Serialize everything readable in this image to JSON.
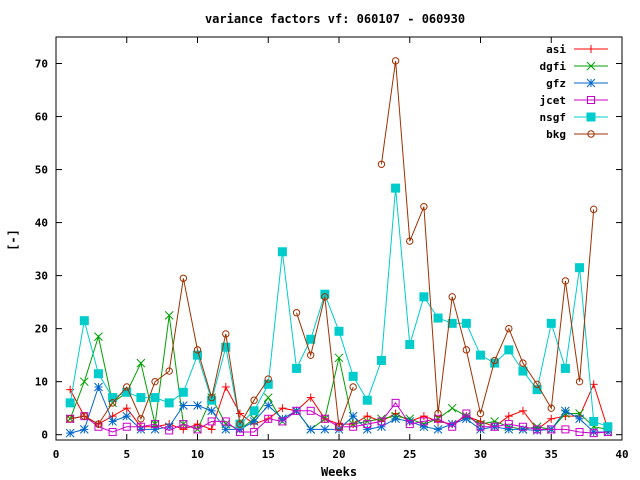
{
  "chart_data": {
    "type": "line",
    "title": "variance factors vf: 060107 - 060930",
    "xlabel": "Weeks",
    "ylabel": "[-]",
    "xlim": [
      0,
      40
    ],
    "ylim": [
      -1,
      75
    ],
    "xticks": [
      0,
      5,
      10,
      15,
      20,
      25,
      30,
      35,
      40
    ],
    "yticks": [
      0,
      10,
      20,
      30,
      40,
      50,
      60,
      70
    ],
    "grid": false,
    "legend_position": "top-right",
    "series": [
      {
        "name": "asi",
        "color": "#ff0000",
        "marker": "plus",
        "x": [
          1,
          2,
          3,
          4,
          5,
          6,
          7,
          8,
          9,
          10,
          11,
          12,
          13,
          14,
          15,
          16,
          17,
          18,
          19,
          20,
          21,
          22,
          23,
          24,
          25,
          26,
          27,
          28,
          29,
          30,
          31,
          32,
          33,
          34,
          35,
          36,
          37,
          38,
          39
        ],
        "y": [
          8.5,
          3.5,
          2,
          3.5,
          5,
          1.5,
          1.5,
          2,
          1,
          2,
          1,
          9,
          4,
          2,
          3,
          5,
          4.5,
          7,
          3,
          2,
          2,
          3.5,
          2.5,
          4,
          2.5,
          3.5,
          2.5,
          2,
          3.5,
          2.5,
          1.5,
          3.5,
          4.5,
          1,
          3,
          3.5,
          3.5,
          9.5,
          1
        ]
      },
      {
        "name": "dgfi",
        "color": "#00a000",
        "marker": "cross",
        "x": [
          1,
          2,
          3,
          4,
          5,
          6,
          7,
          8,
          9,
          10,
          11,
          12,
          13,
          14,
          15,
          16,
          17,
          18,
          19,
          20,
          21,
          22,
          23,
          24,
          25,
          26,
          27,
          28,
          29,
          30,
          31,
          32,
          33,
          34,
          35,
          36,
          37,
          38,
          39
        ],
        "y": [
          3,
          10,
          18.5,
          6,
          8,
          13.5,
          2,
          22.5,
          2,
          1,
          7,
          2,
          1,
          3,
          7,
          2.5,
          4.5,
          1,
          3,
          14.5,
          2,
          2.5,
          3,
          3.5,
          3,
          2,
          3,
          5,
          3.5,
          2,
          2.5,
          1.5,
          1,
          1.5,
          1,
          4,
          4,
          1.5,
          1
        ]
      },
      {
        "name": "gfz",
        "color": "#0066cc",
        "marker": "star",
        "x": [
          1,
          2,
          3,
          4,
          5,
          6,
          7,
          8,
          9,
          10,
          11,
          12,
          13,
          14,
          15,
          16,
          17,
          18,
          19,
          20,
          21,
          22,
          23,
          24,
          25,
          26,
          27,
          28,
          29,
          30,
          31,
          32,
          33,
          34,
          35,
          36,
          37,
          38,
          39
        ],
        "y": [
          0.3,
          1,
          9,
          2.5,
          3.5,
          1,
          1,
          1.5,
          5.5,
          5.5,
          4.5,
          1,
          1,
          2.5,
          5.5,
          3,
          4.5,
          1,
          1,
          1,
          3.5,
          1,
          1.5,
          3,
          2.5,
          1.5,
          1,
          2,
          3,
          1,
          1.5,
          1,
          1,
          0.8,
          1,
          4.5,
          3,
          0.5,
          0.5
        ]
      },
      {
        "name": "jcet",
        "color": "#cc00cc",
        "marker": "square",
        "x": [
          1,
          2,
          3,
          4,
          5,
          6,
          7,
          8,
          9,
          10,
          11,
          12,
          13,
          14,
          15,
          16,
          17,
          18,
          19,
          20,
          21,
          22,
          23,
          24,
          25,
          26,
          27,
          28,
          29,
          30,
          31,
          32,
          33,
          34,
          35,
          36,
          37,
          38,
          39
        ],
        "y": [
          3,
          3.5,
          1.5,
          0.5,
          1.5,
          1.5,
          2,
          0.8,
          2,
          1,
          2.5,
          2.5,
          0.5,
          0.5,
          3,
          2.5,
          4.5,
          4.5,
          3,
          1.5,
          1.5,
          2,
          2.5,
          6,
          2,
          2.5,
          3,
          1.5,
          4,
          1.5,
          1.5,
          2,
          1.5,
          1,
          1,
          1,
          0.5,
          0.3,
          0.5
        ]
      },
      {
        "name": "nsgf",
        "color": "#00cccc",
        "marker": "filled-square",
        "x": [
          1,
          2,
          3,
          4,
          5,
          6,
          7,
          8,
          9,
          10,
          11,
          12,
          13,
          14,
          15,
          16,
          17,
          18,
          19,
          20,
          21,
          22,
          23,
          24,
          25,
          26,
          27,
          28,
          29,
          30,
          31,
          32,
          33,
          34,
          35,
          36,
          37,
          38,
          39
        ],
        "y": [
          6,
          21.5,
          11.5,
          7,
          8,
          7,
          7,
          6,
          8,
          15,
          6.5,
          16.5,
          2,
          4.5,
          9.5,
          34.5,
          12.5,
          18,
          26.5,
          19.5,
          11,
          6.5,
          14,
          46.5,
          17,
          26,
          22,
          21,
          21,
          15,
          13.5,
          16,
          12,
          8.5,
          21,
          12.5,
          31.5,
          2.5,
          1.5
        ]
      },
      {
        "name": "bkg",
        "color": "#a03000",
        "marker": "circle",
        "x": [
          1,
          2,
          3,
          4,
          5,
          6,
          7,
          8,
          9,
          10,
          11,
          12,
          13,
          14,
          15,
          16,
          17,
          18,
          19,
          20,
          21,
          22,
          23,
          24,
          25,
          26,
          27,
          28,
          29,
          30,
          31,
          32,
          33,
          34,
          35,
          36,
          37,
          38,
          39
        ],
        "y": [
          3,
          3.5,
          2,
          6,
          9,
          3,
          10,
          12,
          29.5,
          16,
          7,
          19,
          2,
          6.5,
          10.5,
          null,
          23,
          15,
          26,
          1.5,
          9,
          null,
          51,
          70.5,
          36.5,
          43,
          4,
          26,
          16,
          4,
          14,
          20,
          13.5,
          9.5,
          5,
          29,
          10,
          42.5,
          null
        ]
      }
    ]
  }
}
